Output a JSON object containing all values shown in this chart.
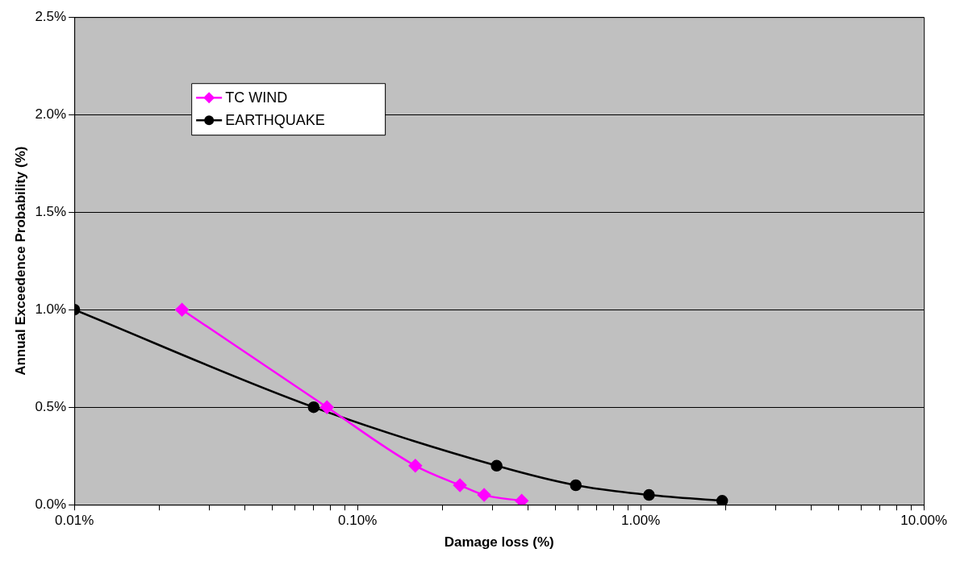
{
  "chart_data": {
    "type": "line",
    "xlabel": "Damage loss (%)",
    "ylabel": "Annual Exceedence Probability (%)",
    "log": "x",
    "grid": "y",
    "legend": "top left",
    "xlim": [
      0.01,
      10
    ],
    "xticks": [
      {
        "value": 0.01,
        "label": "0.01%"
      },
      {
        "value": 0.02,
        "label": null
      },
      {
        "value": 0.03,
        "label": null
      },
      {
        "value": 0.04,
        "label": null
      },
      {
        "value": 0.05,
        "label": null
      },
      {
        "value": 0.06,
        "label": null
      },
      {
        "value": 0.07,
        "label": null
      },
      {
        "value": 0.08,
        "label": null
      },
      {
        "value": 0.09,
        "label": null
      },
      {
        "value": 0.1,
        "label": "0.10%"
      },
      {
        "value": 0.2,
        "label": null
      },
      {
        "value": 0.3,
        "label": null
      },
      {
        "value": 0.4,
        "label": null
      },
      {
        "value": 0.5,
        "label": null
      },
      {
        "value": 0.6,
        "label": null
      },
      {
        "value": 0.7,
        "label": null
      },
      {
        "value": 0.8,
        "label": null
      },
      {
        "value": 0.9,
        "label": null
      },
      {
        "value": 1,
        "label": "1.00%"
      },
      {
        "value": 2,
        "label": null
      },
      {
        "value": 3,
        "label": null
      },
      {
        "value": 4,
        "label": null
      },
      {
        "value": 5,
        "label": null
      },
      {
        "value": 6,
        "label": null
      },
      {
        "value": 7,
        "label": null
      },
      {
        "value": 8,
        "label": null
      },
      {
        "value": 9,
        "label": null
      },
      {
        "value": 10,
        "label": "10.00%"
      }
    ],
    "ylim": [
      0,
      2.5
    ],
    "yticks": [
      {
        "value": 0,
        "label": "0.0%"
      },
      {
        "value": 0.5,
        "label": "0.5%"
      },
      {
        "value": 1,
        "label": "1.0%"
      },
      {
        "value": 1.5,
        "label": "1.5%"
      },
      {
        "value": 2,
        "label": "2.0%"
      },
      {
        "value": 2.5,
        "label": "2.5%"
      }
    ],
    "series": [
      {
        "name": "TC WIND",
        "color": "#ff00ff",
        "marker": "diamond",
        "x": [
          0.024,
          0.078,
          0.16,
          0.23,
          0.28,
          0.38
        ],
        "values": [
          1.0,
          0.5,
          0.2,
          0.1,
          0.05,
          0.02
        ]
      },
      {
        "name": "EARTHQUAKE",
        "color": "#000000",
        "marker": "circle",
        "x": [
          0.01,
          0.07,
          0.31,
          0.59,
          1.07,
          1.94
        ],
        "values": [
          1.0,
          0.5,
          0.2,
          0.1,
          0.05,
          0.02
        ]
      }
    ]
  }
}
